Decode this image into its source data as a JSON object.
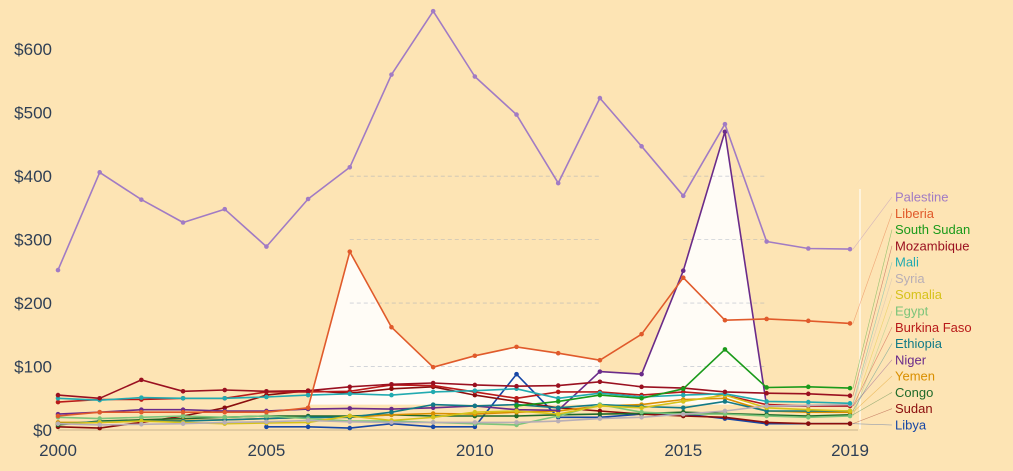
{
  "chart_data": {
    "type": "line",
    "title": "",
    "xlabel": "",
    "ylabel": "",
    "background": "#fde4b4",
    "xlim": [
      2000,
      2019
    ],
    "ylim": [
      0,
      665
    ],
    "grid": false,
    "legend_placement": "right",
    "x_ticks": [
      2000,
      2005,
      2010,
      2015,
      2019
    ],
    "x_tick_labels": [
      "2000",
      "2005",
      "2010",
      "2015",
      "2019"
    ],
    "y_ticks": [
      0,
      100,
      200,
      300,
      400,
      500,
      600
    ],
    "y_tick_labels": [
      "$0",
      "$100",
      "$200",
      "$300",
      "$400",
      "$500",
      "$600"
    ],
    "x": [
      2000,
      2001,
      2002,
      2003,
      2004,
      2005,
      2006,
      2007,
      2008,
      2009,
      2010,
      2011,
      2012,
      2013,
      2014,
      2015,
      2016,
      2017,
      2018,
      2019
    ],
    "series": [
      {
        "name": "Palestine",
        "color": "#a17bc4",
        "values": [
          252,
          406,
          363,
          327,
          348,
          289,
          364,
          414,
          560,
          660,
          557,
          497,
          389,
          523,
          447,
          369,
          482,
          297,
          286,
          285
        ]
      },
      {
        "name": "Liberia",
        "color": "#e05a2b",
        "values": [
          22,
          28,
          28,
          28,
          28,
          28,
          35,
          281,
          162,
          99,
          117,
          131,
          121,
          110,
          151,
          240,
          173,
          175,
          172,
          168
        ]
      },
      {
        "name": "South Sudan",
        "color": "#1a9a1a",
        "values": [
          null,
          null,
          null,
          null,
          null,
          null,
          null,
          null,
          null,
          null,
          null,
          38,
          45,
          55,
          50,
          65,
          127,
          67,
          68,
          66
        ]
      },
      {
        "name": "Mozambique",
        "color": "#9a1020",
        "values": [
          55,
          50,
          79,
          61,
          63,
          61,
          62,
          68,
          72,
          74,
          71,
          69,
          70,
          76,
          68,
          66,
          60,
          58,
          57,
          54
        ]
      },
      {
        "name": "Mali",
        "color": "#22aab0",
        "values": [
          50,
          47,
          51,
          50,
          50,
          52,
          55,
          57,
          55,
          60,
          62,
          65,
          50,
          58,
          52,
          55,
          57,
          45,
          44,
          42
        ]
      },
      {
        "name": "Syria",
        "color": "#b8aeb6",
        "values": [
          10,
          8,
          9,
          10,
          12,
          13,
          15,
          13,
          12,
          12,
          12,
          12,
          14,
          18,
          20,
          25,
          30,
          38,
          39,
          40
        ]
      },
      {
        "name": "Somalia",
        "color": "#d6c21a",
        "values": [
          10,
          12,
          14,
          12,
          10,
          11,
          12,
          22,
          15,
          20,
          28,
          30,
          25,
          38,
          35,
          45,
          55,
          35,
          32,
          30
        ]
      },
      {
        "name": "Egypt",
        "color": "#7cc47a",
        "values": [
          20,
          18,
          20,
          22,
          20,
          22,
          18,
          14,
          14,
          12,
          10,
          8,
          22,
          40,
          28,
          25,
          25,
          22,
          20,
          22
        ]
      },
      {
        "name": "Burkina Faso",
        "color": "#b81a1a",
        "values": [
          44,
          48,
          48,
          50,
          50,
          60,
          60,
          61,
          71,
          70,
          60,
          50,
          60,
          60,
          55,
          60,
          55,
          40,
          38,
          38
        ]
      },
      {
        "name": "Ethiopia",
        "color": "#127a86",
        "values": [
          10,
          13,
          14,
          14,
          16,
          18,
          20,
          20,
          28,
          40,
          38,
          40,
          35,
          40,
          37,
          35,
          45,
          30,
          30,
          30
        ]
      },
      {
        "name": "Niger",
        "color": "#6a2b8a",
        "values": [
          25,
          28,
          32,
          32,
          30,
          30,
          33,
          34,
          33,
          35,
          38,
          32,
          31,
          92,
          88,
          251,
          470,
          38,
          38,
          38
        ]
      },
      {
        "name": "Yemen",
        "color": "#d98f00",
        "values": [
          12,
          12,
          14,
          15,
          16,
          18,
          20,
          20,
          24,
          26,
          25,
          28,
          30,
          38,
          40,
          48,
          50,
          30,
          28,
          28
        ]
      },
      {
        "name": "Congo",
        "color": "#1f6a2a",
        "values": [
          8,
          14,
          16,
          18,
          20,
          22,
          22,
          22,
          24,
          22,
          22,
          22,
          24,
          25,
          26,
          28,
          26,
          24,
          22,
          24
        ]
      },
      {
        "name": "Sudan",
        "color": "#8a0d0d",
        "values": [
          5,
          3,
          12,
          22,
          35,
          55,
          62,
          58,
          65,
          68,
          55,
          45,
          35,
          30,
          25,
          22,
          20,
          12,
          10,
          10
        ]
      },
      {
        "name": "Libya",
        "color": "#1747a6",
        "values": [
          null,
          null,
          null,
          null,
          null,
          5,
          5,
          3,
          10,
          5,
          5,
          88,
          20,
          20,
          25,
          25,
          18,
          10,
          10,
          10
        ]
      }
    ]
  }
}
